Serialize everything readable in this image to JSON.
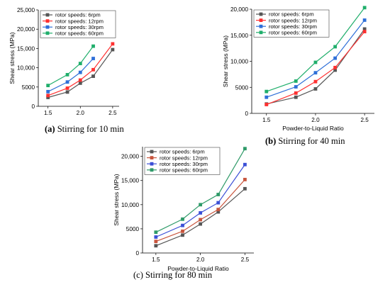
{
  "chart_data": [
    {
      "type": "line",
      "caption_letter": "(a)",
      "caption_text": " Stirring for 10 min",
      "ylabel": "Shear stress (MPa)",
      "xlabel": "",
      "xlim": [
        1.35,
        2.6
      ],
      "ylim": [
        0,
        25000
      ],
      "xticks": [
        1.5,
        2.0,
        2.5
      ],
      "xtick_labels": [
        "1.5",
        "2.0",
        "2.5"
      ],
      "yticks": [
        0,
        5000,
        10000,
        15000,
        20000,
        25000
      ],
      "ytick_labels": [
        "0",
        "5000",
        "10,000",
        "15,000",
        "20,000",
        "25,000"
      ],
      "legend_position": "top-left",
      "series": [
        {
          "name": "rotor speeds: 6rpm",
          "color": "#555555",
          "x": [
            1.5,
            1.8,
            2.0,
            2.2,
            2.5
          ],
          "y": [
            2300,
            3700,
            6000,
            7800,
            14700
          ]
        },
        {
          "name": "rotor speeds: 12rpm",
          "color": "#ff3030",
          "x": [
            1.5,
            1.8,
            2.0,
            2.2,
            2.5
          ],
          "y": [
            2800,
            4700,
            6800,
            9500,
            16200
          ]
        },
        {
          "name": "rotor speeds: 30rpm",
          "color": "#2e6fd8",
          "x": [
            1.5,
            1.8,
            2.0,
            2.2
          ],
          "y": [
            3800,
            6300,
            8800,
            12400
          ]
        },
        {
          "name": "rotor speeds: 60rpm",
          "color": "#1fae6b",
          "x": [
            1.5,
            1.8,
            2.0,
            2.2
          ],
          "y": [
            5400,
            8200,
            11100,
            15600
          ]
        }
      ]
    },
    {
      "type": "line",
      "caption_letter": "(b)",
      "caption_text": " Stirring for 40 min",
      "ylabel": "Shear stress (MPa)",
      "xlabel": "Powder-to-Liquid Ratio",
      "xlim": [
        1.35,
        2.6
      ],
      "ylim": [
        0,
        20000
      ],
      "xticks": [
        1.5,
        2.0,
        2.5
      ],
      "xtick_labels": [
        "1.5",
        "2.0",
        "2.5"
      ],
      "yticks": [
        0,
        5000,
        10000,
        15000,
        20000
      ],
      "ytick_labels": [
        "0",
        "5000",
        "10,000",
        "15,000",
        "20,000"
      ],
      "legend_position": "top-left",
      "series": [
        {
          "name": "rotor speeds: 6rpm",
          "color": "#555555",
          "x": [
            1.5,
            1.8,
            2.0,
            2.2,
            2.5
          ],
          "y": [
            1800,
            3100,
            4700,
            8300,
            16200
          ]
        },
        {
          "name": "rotor speeds: 12rpm",
          "color": "#ff3030",
          "x": [
            1.5,
            1.8,
            2.0,
            2.2,
            2.5
          ],
          "y": [
            1700,
            3900,
            6100,
            8800,
            15700
          ]
        },
        {
          "name": "rotor speeds: 30rpm",
          "color": "#2e6fd8",
          "x": [
            1.5,
            1.8,
            2.0,
            2.2,
            2.5
          ],
          "y": [
            3100,
            5100,
            7800,
            10600,
            17900
          ]
        },
        {
          "name": "rotor speeds: 60rpm",
          "color": "#1fae6b",
          "x": [
            1.5,
            1.8,
            2.0,
            2.2,
            2.5
          ],
          "y": [
            4200,
            6200,
            9800,
            12800,
            20300
          ]
        }
      ]
    },
    {
      "type": "line",
      "caption_letter": "",
      "caption_text": "(c) Stirring for 80 min",
      "ylabel": "Shear stress (MPa)",
      "xlabel": "Powder-to-Liquid Ratio",
      "xlim": [
        1.35,
        2.6
      ],
      "ylim": [
        0,
        22000
      ],
      "xticks": [
        1.5,
        2.0,
        2.5
      ],
      "xtick_labels": [
        "1.5",
        "2.0",
        "2.5"
      ],
      "yticks": [
        0,
        5000,
        10000,
        15000,
        20000
      ],
      "ytick_labels": [
        "0",
        "5000",
        "10,000",
        "15,000",
        "20,000"
      ],
      "legend_position": "top-left",
      "series": [
        {
          "name": "rotor speeds: 6rpm",
          "color": "#555555",
          "x": [
            1.5,
            1.8,
            2.0,
            2.2,
            2.5
          ],
          "y": [
            1500,
            3700,
            6000,
            8500,
            13300
          ]
        },
        {
          "name": "rotor speeds: 12rpm",
          "color": "#c8553d",
          "x": [
            1.5,
            1.8,
            2.0,
            2.2,
            2.5
          ],
          "y": [
            2400,
            4500,
            6900,
            9000,
            15200
          ]
        },
        {
          "name": "rotor speeds: 30rpm",
          "color": "#3b4fd6",
          "x": [
            1.5,
            1.8,
            2.0,
            2.2,
            2.5
          ],
          "y": [
            3300,
            5700,
            8300,
            10400,
            18300
          ]
        },
        {
          "name": "rotor speeds: 60rpm",
          "color": "#2e9a68",
          "x": [
            1.5,
            1.8,
            2.0,
            2.2,
            2.5
          ],
          "y": [
            4300,
            7000,
            10000,
            12100,
            21600
          ]
        }
      ]
    }
  ]
}
